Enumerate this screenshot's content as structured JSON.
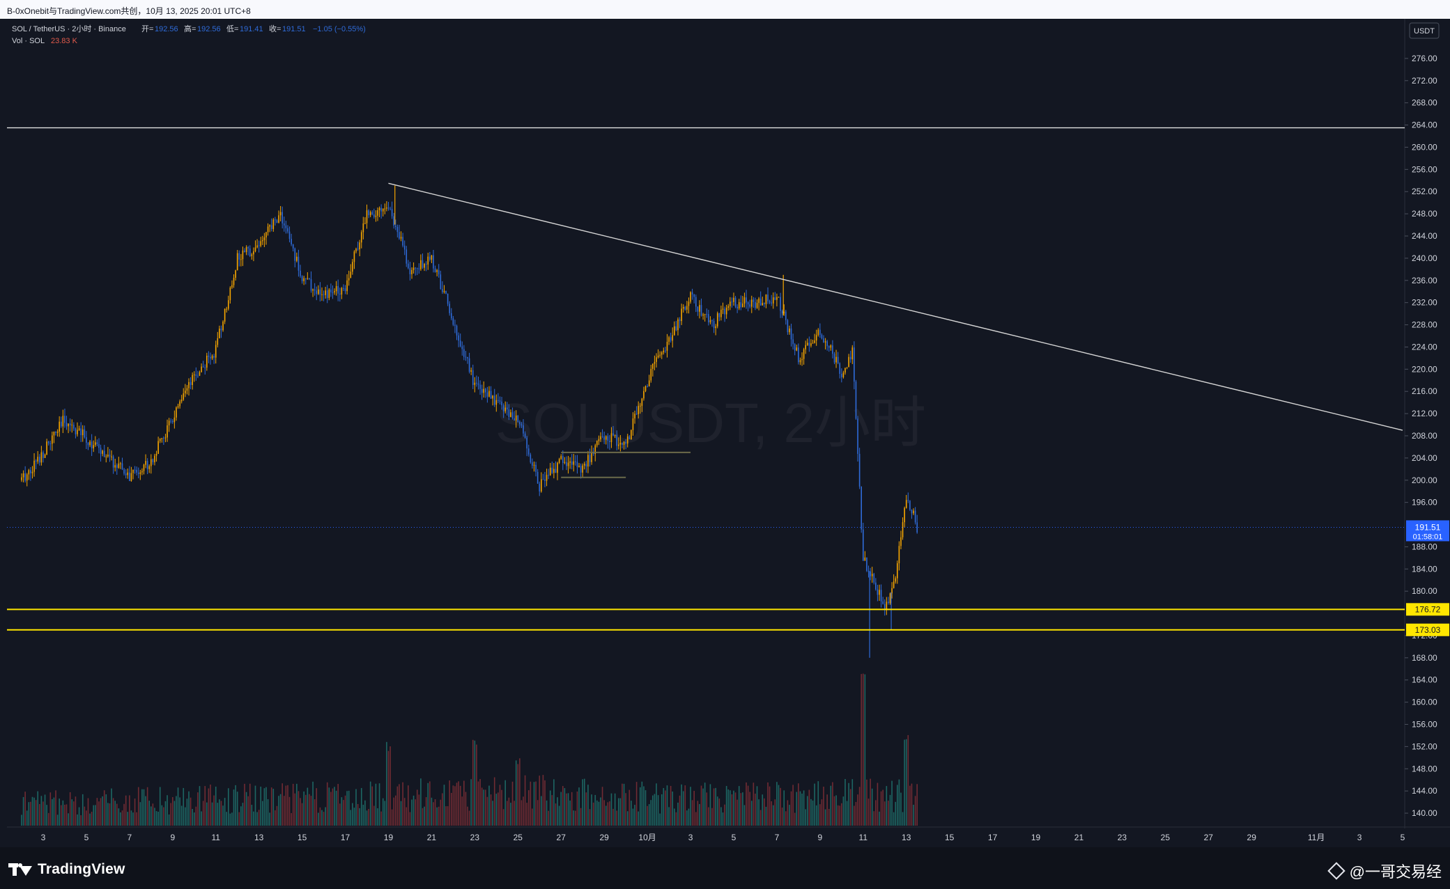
{
  "window": {
    "title": "B-0xOnebit与TradingView.com共创，10月 13, 2025 20:01 UTC+8"
  },
  "legend": {
    "symbol_line": "SOL / TetherUS · 2小时 · Binance",
    "open_label": "开=",
    "open_value": "192.56",
    "high_label": "高=",
    "high_value": "192.56",
    "low_label": "低=",
    "low_value": "191.41",
    "close_label": "收=",
    "close_value": "191.51",
    "change_value": "−1.05 (−0.55%)",
    "volume_label": "Vol · SOL",
    "volume_value": "23.83 K"
  },
  "watermark": "SOLUSDT, 2小时",
  "price_axis": {
    "currency": "USDT",
    "ticks": [
      "276.00",
      "272.00",
      "268.00",
      "264.00",
      "260.00",
      "256.00",
      "252.00",
      "248.00",
      "244.00",
      "240.00",
      "236.00",
      "232.00",
      "228.00",
      "224.00",
      "220.00",
      "216.00",
      "212.00",
      "208.00",
      "204.00",
      "200.00",
      "196.00",
      "188.00",
      "184.00",
      "180.00",
      "172.00",
      "168.00",
      "164.00",
      "160.00",
      "156.00",
      "152.00",
      "148.00",
      "144.00",
      "140.00"
    ],
    "last_price_tag": "191.51",
    "countdown_tag": "01:58:01",
    "level_tags": [
      "176.72",
      "173.03"
    ]
  },
  "time_axis": {
    "ticks": [
      "3",
      "5",
      "7",
      "9",
      "11",
      "13",
      "15",
      "17",
      "19",
      "21",
      "23",
      "25",
      "27",
      "29",
      "10月",
      "3",
      "5",
      "7",
      "9",
      "11",
      "13",
      "15",
      "17",
      "19",
      "21",
      "23",
      "25",
      "27",
      "29",
      "11月",
      "3",
      "5"
    ]
  },
  "footer": {
    "brand": "TradingView",
    "credit": "@一哥交易经"
  },
  "colors": {
    "background": "#131722",
    "up_candle": "#f7a600",
    "down_candle": "#2f6bd8",
    "support_line": "#ffe600",
    "resistance_line": "#e0e0e0",
    "trendline": "#d6d6d6",
    "last_price": "#2962ff"
  },
  "chart_data": {
    "type": "candlestick",
    "symbol": "SOL / TetherUS",
    "interval": "2小时",
    "exchange": "Binance",
    "ylim": [
      138,
      279
    ],
    "x_range": [
      "09-02",
      "11-05"
    ],
    "close_path": [
      {
        "date": "09-02",
        "price": 200.0
      },
      {
        "date": "09-03",
        "price": 205.0
      },
      {
        "date": "09-04",
        "price": 211.0
      },
      {
        "date": "09-05",
        "price": 207.5
      },
      {
        "date": "09-06",
        "price": 204.0
      },
      {
        "date": "09-07",
        "price": 200.5
      },
      {
        "date": "09-08",
        "price": 203.5
      },
      {
        "date": "09-09",
        "price": 211.0
      },
      {
        "date": "09-10",
        "price": 218.5
      },
      {
        "date": "09-11",
        "price": 223.5
      },
      {
        "date": "09-12",
        "price": 240.0
      },
      {
        "date": "09-13",
        "price": 242.5
      },
      {
        "date": "09-14",
        "price": 248.0
      },
      {
        "date": "09-15",
        "price": 236.5
      },
      {
        "date": "09-16",
        "price": 233.0
      },
      {
        "date": "09-17",
        "price": 235.0
      },
      {
        "date": "09-18",
        "price": 248.0
      },
      {
        "date": "09-19",
        "price": 249.5
      },
      {
        "date": "09-20",
        "price": 238.0
      },
      {
        "date": "09-21",
        "price": 240.0
      },
      {
        "date": "09-22",
        "price": 229.0
      },
      {
        "date": "09-23",
        "price": 217.0
      },
      {
        "date": "09-24",
        "price": 214.0
      },
      {
        "date": "09-25",
        "price": 211.0
      },
      {
        "date": "09-26",
        "price": 199.0
      },
      {
        "date": "09-27",
        "price": 203.5
      },
      {
        "date": "09-28",
        "price": 202.0
      },
      {
        "date": "09-29",
        "price": 208.0
      },
      {
        "date": "09-30",
        "price": 206.5
      },
      {
        "date": "10-01",
        "price": 218.0
      },
      {
        "date": "10-02",
        "price": 225.5
      },
      {
        "date": "10-03",
        "price": 233.0
      },
      {
        "date": "10-04",
        "price": 228.0
      },
      {
        "date": "10-05",
        "price": 232.0
      },
      {
        "date": "10-06",
        "price": 232.0
      },
      {
        "date": "10-07",
        "price": 233.0
      },
      {
        "date": "10-08",
        "price": 222.0
      },
      {
        "date": "10-09",
        "price": 227.0
      },
      {
        "date": "10-10",
        "price": 219.5
      },
      {
        "date": "10-10",
        "price": 223.0
      },
      {
        "date": "10-11",
        "price": 186.0
      },
      {
        "date": "10-11",
        "price": 182.0
      },
      {
        "date": "10-12",
        "price": 176.5
      },
      {
        "date": "10-12",
        "price": 182.0
      },
      {
        "date": "10-13",
        "price": 197.5
      },
      {
        "date": "10-13",
        "price": 191.51
      }
    ],
    "extremes": [
      {
        "date": "09-19",
        "price": 253.1,
        "kind": "high"
      },
      {
        "date": "10-07",
        "price": 237.0,
        "kind": "high"
      },
      {
        "date": "10-11",
        "price": 168.0,
        "kind": "low"
      },
      {
        "date": "10-12",
        "price": 173.0,
        "kind": "low"
      }
    ],
    "volume": {
      "baseline": [
        {
          "date": "09-02",
          "value": 0.18
        },
        {
          "date": "09-12",
          "value": 0.22
        },
        {
          "date": "09-19",
          "value": 0.24
        },
        {
          "date": "09-25",
          "value": 0.28
        },
        {
          "date": "10-02",
          "value": 0.22
        },
        {
          "date": "10-08",
          "value": 0.24
        },
        {
          "date": "10-13",
          "value": 0.25
        }
      ],
      "spikes": [
        {
          "date": "09-19",
          "value": 0.55
        },
        {
          "date": "09-23",
          "value": 0.62
        },
        {
          "date": "09-25",
          "value": 0.45
        },
        {
          "date": "10-11",
          "value": 1.0
        },
        {
          "date": "10-13",
          "value": 0.62
        }
      ]
    },
    "lines": {
      "horizontal_resistance": 263.5,
      "support_levels": [
        176.72,
        173.03
      ],
      "trendline": {
        "from": {
          "date": "09-19",
          "price": 253.5
        },
        "to": {
          "date": "11-05",
          "price": 209.0
        }
      },
      "range_boxes": [
        {
          "from": "09-27",
          "to": "10-03",
          "price": 205.0
        },
        {
          "from": "09-27",
          "to": "09-30",
          "price": 200.5
        }
      ]
    },
    "last_price": 191.51
  }
}
